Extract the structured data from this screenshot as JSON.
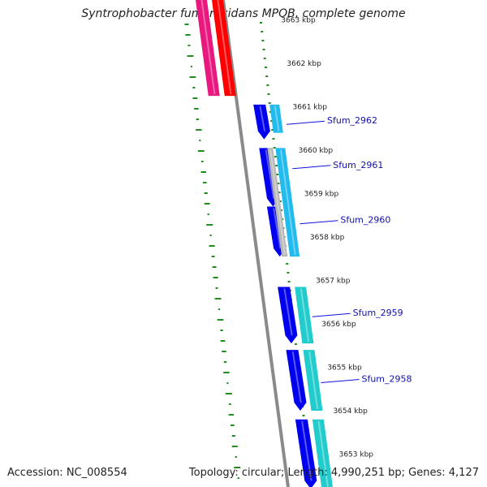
{
  "title": "Syntrophobacter fumaroxidans MPOB, complete genome",
  "footer": {
    "accession": "Accession: NC_008554",
    "summary": "Topology: circular; Length: 4,990,251 bp; Genes: 4,127"
  },
  "kbp_ticks": [
    {
      "kbp": 3663,
      "label": "3663 kbp"
    },
    {
      "kbp": 3662,
      "label": "3662 kbp"
    },
    {
      "kbp": 3661,
      "label": "3661 kbp"
    },
    {
      "kbp": 3660,
      "label": "3660 kbp"
    },
    {
      "kbp": 3659,
      "label": "3659 kbp"
    },
    {
      "kbp": 3658,
      "label": "3658 kbp"
    },
    {
      "kbp": 3657,
      "label": "3657 kbp"
    },
    {
      "kbp": 3656,
      "label": "3656 kbp"
    },
    {
      "kbp": 3655,
      "label": "3655 kbp"
    },
    {
      "kbp": 3654,
      "label": "3654 kbp"
    },
    {
      "kbp": 3653,
      "label": "3653 kbp"
    }
  ],
  "gene_labels": [
    {
      "name": "Sfum_2962",
      "kbp": 3660.65
    },
    {
      "name": "Sfum_2961",
      "kbp": 3659.63
    },
    {
      "name": "Sfum_2960",
      "kbp": 3658.36
    },
    {
      "name": "Sfum_2959",
      "kbp": 3656.22
    },
    {
      "name": "Sfum_2958",
      "kbp": 3654.7
    }
  ],
  "features": [
    {
      "track": "pink",
      "start_kbp": 3661.25,
      "end_kbp": 3663.6,
      "color": "#e8187f",
      "arrow": "none"
    },
    {
      "track": "red",
      "start_kbp": 3661.25,
      "end_kbp": 3663.6,
      "color": "#ff0000",
      "arrow": "none"
    },
    {
      "track": "blue",
      "start_kbp": 3660.25,
      "end_kbp": 3661.05,
      "color": "#0000ee",
      "arrow": "down"
    },
    {
      "track": "blue",
      "start_kbp": 3658.7,
      "end_kbp": 3660.05,
      "color": "#0000ee",
      "arrow": "down"
    },
    {
      "track": "blue",
      "start_kbp": 3657.55,
      "end_kbp": 3658.7,
      "color": "#0000ee",
      "arrow": "down"
    },
    {
      "track": "blue",
      "start_kbp": 3655.55,
      "end_kbp": 3656.85,
      "color": "#0000ee",
      "arrow": "down"
    },
    {
      "track": "blue",
      "start_kbp": 3654.0,
      "end_kbp": 3655.4,
      "color": "#0000ee",
      "arrow": "down"
    },
    {
      "track": "blue",
      "start_kbp": 3652.2,
      "end_kbp": 3653.8,
      "color": "#0000ee",
      "arrow": "down"
    },
    {
      "track": "cyan",
      "start_kbp": 3660.4,
      "end_kbp": 3661.05,
      "color": "#22bbee",
      "arrow": "none"
    },
    {
      "track": "cyan",
      "start_kbp": 3657.55,
      "end_kbp": 3660.05,
      "color": "#22bbee",
      "arrow": "none"
    },
    {
      "track": "grey",
      "start_kbp": 3657.55,
      "end_kbp": 3660.05,
      "color": "#b8b8b8",
      "arrow": "none"
    },
    {
      "track": "teal",
      "start_kbp": 3655.55,
      "end_kbp": 3656.85,
      "color": "#22cccc",
      "arrow": "none"
    },
    {
      "track": "teal",
      "start_kbp": 3654.0,
      "end_kbp": 3655.4,
      "color": "#22cccc",
      "arrow": "none"
    },
    {
      "track": "teal",
      "start_kbp": 3652.2,
      "end_kbp": 3653.8,
      "color": "#22cccc",
      "arrow": "none"
    }
  ],
  "colors": {
    "backbone": "#8a8a8a",
    "gc_skew": "#228b22",
    "label_line": "#1010dd",
    "label_text": "#1010aa"
  }
}
